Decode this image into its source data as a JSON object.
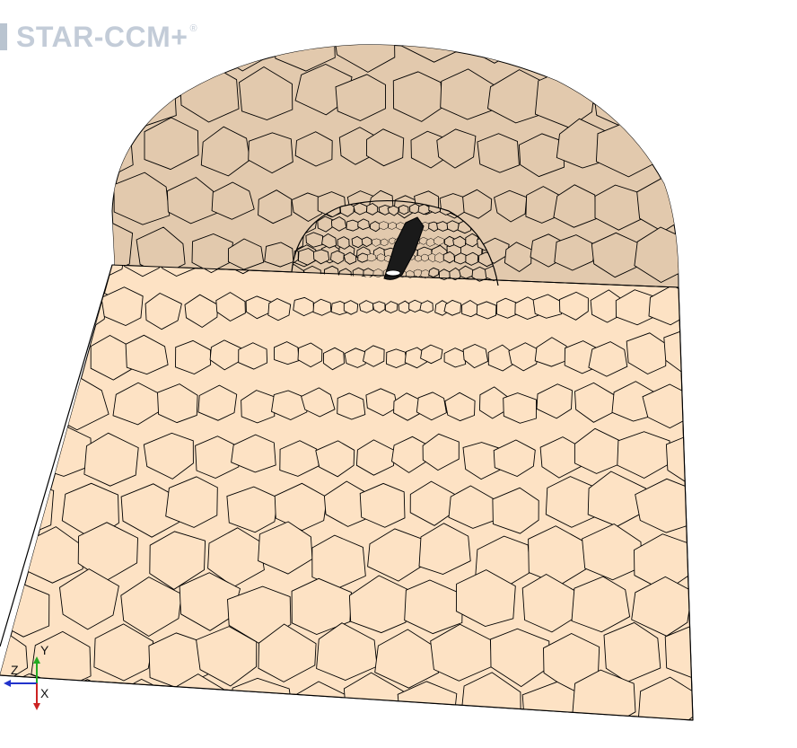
{
  "app": {
    "logo_text": "STAR-CCM+",
    "logo_registered": "®"
  },
  "scene": {
    "floor_color": "#fde2c4",
    "dome_color": "#e2c9ad",
    "mesh_line_color": "#000000",
    "background": "#ffffff"
  },
  "triad": {
    "y_label": "Y",
    "z_label": "Z",
    "x_label": "X",
    "y_color": "#22aa22",
    "z_color": "#2233cc",
    "x_color": "#cc2222"
  }
}
